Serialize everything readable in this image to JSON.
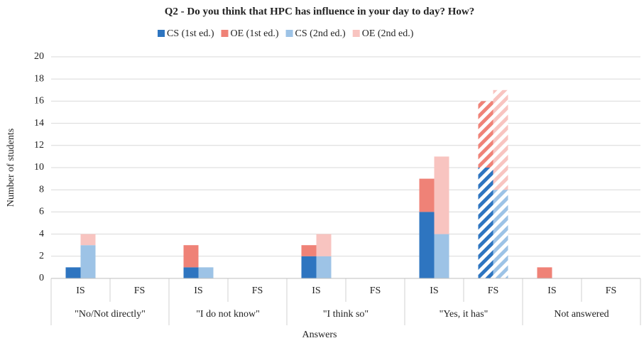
{
  "chart_data": {
    "type": "bar",
    "title": "Q2 - Do you think that HPC has influence in your day to day? How?",
    "x_label": "Answers",
    "y_label": "Number of students",
    "categories": [
      "IS",
      "FS",
      "IS",
      "FS",
      "IS",
      "FS",
      "IS",
      "FS",
      "IS",
      "FS"
    ],
    "groups": [
      "\"No/Not directly\"",
      "\"I do not know\"",
      "\"I think so\"",
      "\"Yes, it has\"",
      "Not answered"
    ],
    "hatched": [
      false,
      true,
      false,
      true,
      false,
      true,
      false,
      true,
      false,
      true
    ],
    "series": [
      {
        "name": "CS (1st ed.)",
        "color": "#2e75c0",
        "stack": 0,
        "values": [
          1,
          0,
          1,
          0,
          2,
          0,
          6,
          10,
          0,
          0
        ]
      },
      {
        "name": "OE (1st ed.)",
        "color": "#ef8277",
        "stack": 0,
        "values": [
          0,
          0,
          2,
          0,
          1,
          0,
          3,
          6,
          1,
          0
        ]
      },
      {
        "name": "CS (2nd ed.)",
        "color": "#9dc3e6",
        "stack": 1,
        "values": [
          3,
          0,
          1,
          0,
          2,
          0,
          4,
          8,
          0,
          0
        ]
      },
      {
        "name": "OE (2nd ed.)",
        "color": "#f8c4c0",
        "stack": 1,
        "values": [
          1,
          0,
          0,
          0,
          2,
          0,
          7,
          9,
          0,
          0
        ]
      }
    ],
    "ylim": [
      0,
      20
    ],
    "yticks": [
      0,
      2,
      4,
      6,
      8,
      10,
      12,
      14,
      16,
      18,
      20
    ],
    "grid": true,
    "legend": "top"
  }
}
